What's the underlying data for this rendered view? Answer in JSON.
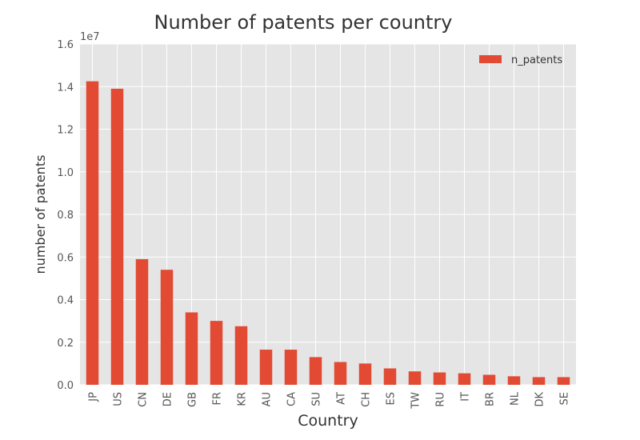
{
  "chart_data": {
    "type": "bar",
    "title": "Number of patents per country",
    "xlabel": "Country",
    "ylabel": "number of patents",
    "y_multiplier_label": "1e7",
    "ylim": [
      0,
      1.6
    ],
    "yticks": [
      "0.0",
      "0.2",
      "0.4",
      "0.6",
      "0.8",
      "1.0",
      "1.2",
      "1.4",
      "1.6"
    ],
    "grid": true,
    "legend_position": "top-right",
    "categories": [
      "JP",
      "US",
      "CN",
      "DE",
      "GB",
      "FR",
      "KR",
      "AU",
      "CA",
      "SU",
      "AT",
      "CH",
      "ES",
      "TW",
      "RU",
      "IT",
      "BR",
      "NL",
      "DK",
      "SE"
    ],
    "series": [
      {
        "name": "n_patents",
        "color": "#E24A33",
        "values": [
          1.425,
          1.39,
          0.59,
          0.54,
          0.34,
          0.3,
          0.275,
          0.165,
          0.165,
          0.13,
          0.107,
          0.1,
          0.077,
          0.063,
          0.058,
          0.054,
          0.047,
          0.04,
          0.036,
          0.036
        ]
      }
    ]
  }
}
